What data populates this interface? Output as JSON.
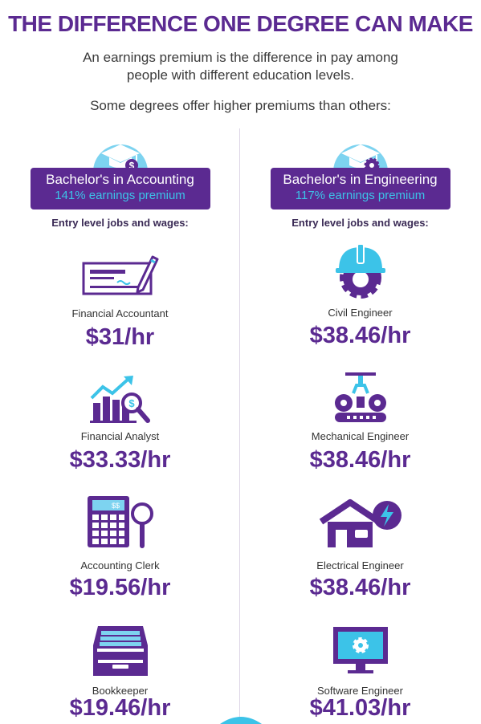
{
  "header": {
    "title": "THE DIFFERENCE ONE DEGREE CAN MAKE",
    "subtitle_line1": "An earnings premium is the difference in pay among",
    "subtitle_line2": "people with different education levels.",
    "intro": "Some degrees offer higher premiums than others:"
  },
  "colors": {
    "purple": "#5b2a91",
    "cyan": "#3cc3e8",
    "light_blue": "#7dd3f0"
  },
  "columns": [
    {
      "degree": "Bachelor's in Accounting",
      "premium": "141% earnings premium",
      "entry_label": "Entry level jobs and wages:",
      "jobs": [
        {
          "title": "Financial Accountant",
          "wage": "$31/hr",
          "icon": "check-writing-icon"
        },
        {
          "title": "Financial Analyst",
          "wage": "$33.33/hr",
          "icon": "analytics-chart-icon"
        },
        {
          "title": "Accounting Clerk",
          "wage": "$19.56/hr",
          "icon": "calculator-icon"
        },
        {
          "title": "Bookkeeper",
          "wage": "$19.46/hr",
          "icon": "file-tray-icon"
        }
      ]
    },
    {
      "degree": "Bachelor's in Engineering",
      "premium": "117% earnings premium",
      "entry_label": "Entry level jobs and wages:",
      "jobs": [
        {
          "title": "Civil Engineer",
          "wage": "$38.46/hr",
          "icon": "hard-hat-gear-icon"
        },
        {
          "title": "Mechanical Engineer",
          "wage": "$38.46/hr",
          "icon": "robot-arm-icon"
        },
        {
          "title": "Electrical Engineer",
          "wage": "$38.46/hr",
          "icon": "house-power-icon"
        },
        {
          "title": "Software Engineer",
          "wage": "$41.03/hr",
          "icon": "monitor-gear-icon"
        }
      ]
    }
  ]
}
